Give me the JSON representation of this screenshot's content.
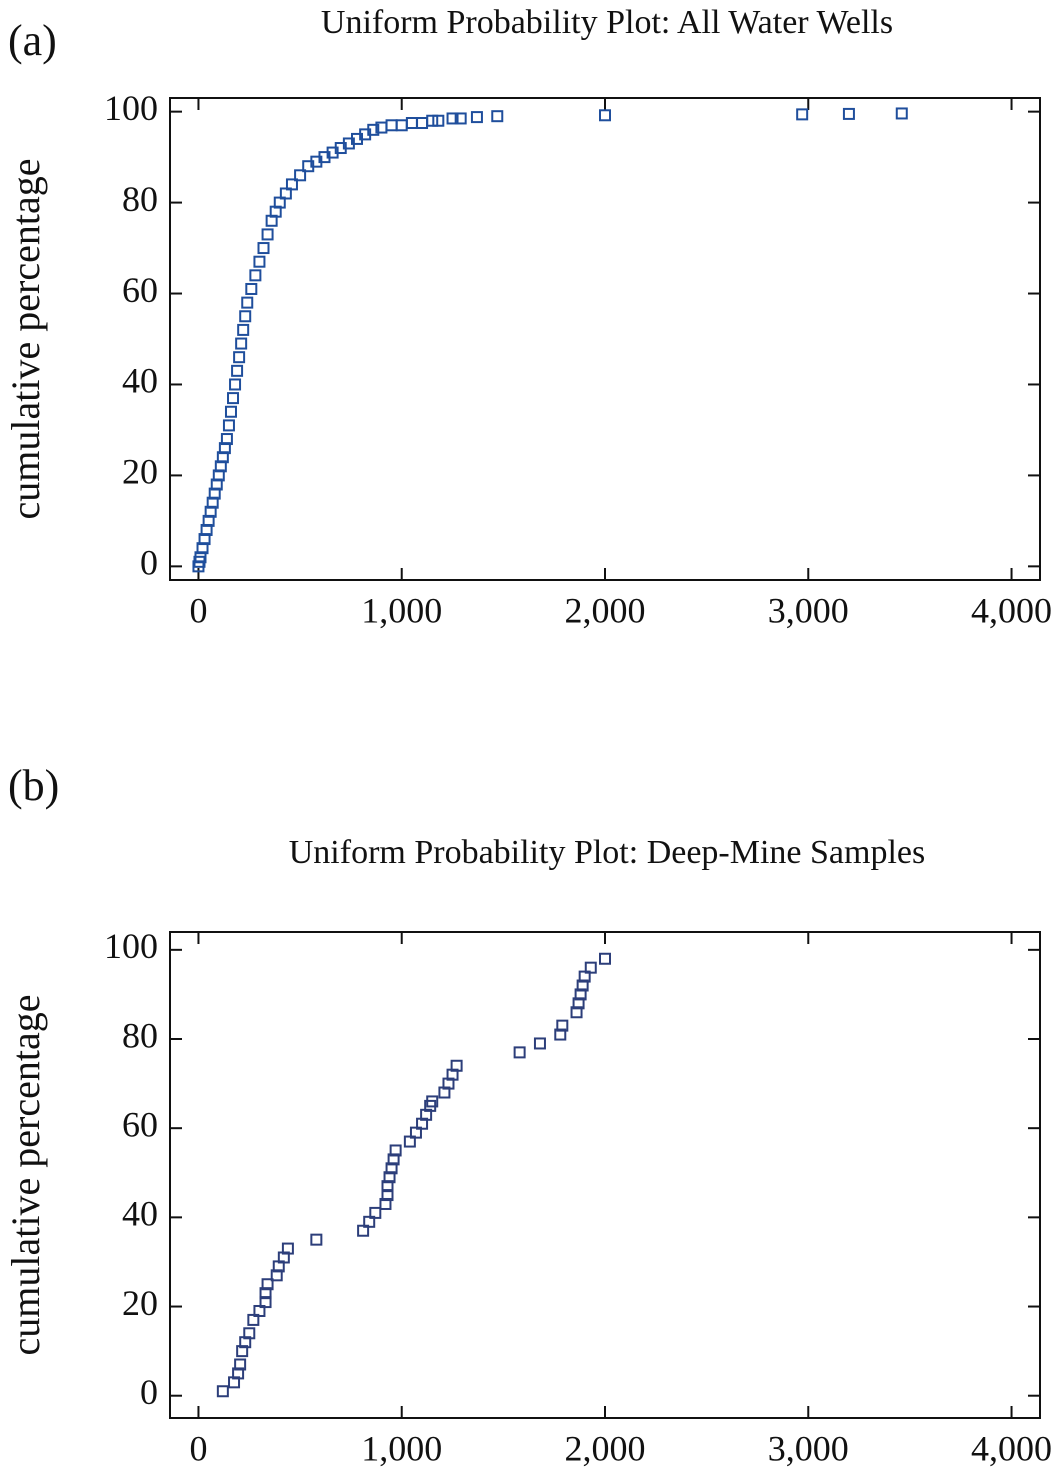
{
  "chart_data": [
    {
      "type": "scatter",
      "panel_label": "(a)",
      "title": "Uniform Probability Plot: All Water Wells",
      "ylabel": "cumulative percentage",
      "color": "#1f4e9c",
      "x": [
        0,
        5,
        10,
        20,
        30,
        40,
        50,
        60,
        70,
        80,
        90,
        100,
        110,
        120,
        130,
        140,
        150,
        160,
        170,
        180,
        190,
        200,
        210,
        220,
        230,
        240,
        260,
        280,
        300,
        320,
        340,
        360,
        380,
        400,
        430,
        460,
        500,
        540,
        580,
        620,
        660,
        700,
        740,
        780,
        820,
        860,
        900,
        950,
        1000,
        1050,
        1100,
        1150,
        1180,
        1250,
        1290,
        1370,
        1470,
        2000,
        2970,
        3200,
        3460
      ],
      "values": [
        0,
        1,
        2,
        4,
        6,
        8,
        10,
        12,
        14,
        16,
        18,
        20,
        22,
        24,
        26,
        28,
        31,
        34,
        37,
        40,
        43,
        46,
        49,
        52,
        55,
        58,
        61,
        64,
        67,
        70,
        73,
        76,
        78,
        80,
        82,
        84,
        86,
        88,
        89,
        90,
        91,
        92,
        93,
        94,
        95,
        96,
        96.5,
        97,
        97,
        97.5,
        97.5,
        98,
        98,
        98.5,
        98.5,
        98.8,
        99,
        99.2,
        99.4,
        99.5,
        99.6
      ],
      "xlim": [
        -140,
        4140
      ],
      "ylim": [
        -3,
        103
      ],
      "xticks": [
        0,
        {
          "value": 1000,
          "label": "1,000"
        },
        {
          "value": 2000,
          "label": "2,000"
        },
        {
          "value": 3000,
          "label": "3,000"
        },
        {
          "value": 4000,
          "label": "4,000"
        }
      ],
      "yticks": [
        0,
        20,
        40,
        60,
        80,
        100
      ]
    },
    {
      "type": "scatter",
      "panel_label": "(b)",
      "title": "Uniform Probability Plot: Deep-Mine Samples",
      "ylabel": "cumulative percentage",
      "color": "#2c3e7a",
      "x": [
        120,
        175,
        195,
        205,
        215,
        230,
        250,
        270,
        300,
        330,
        330,
        340,
        385,
        395,
        420,
        440,
        580,
        810,
        840,
        870,
        920,
        930,
        930,
        940,
        950,
        960,
        970,
        1040,
        1070,
        1100,
        1120,
        1140,
        1150,
        1210,
        1230,
        1250,
        1270,
        1580,
        1680,
        1780,
        1790,
        1860,
        1870,
        1880,
        1890,
        1900,
        1930,
        2000
      ],
      "values": [
        1,
        3,
        5,
        7,
        10,
        12,
        14,
        17,
        19,
        21,
        23,
        25,
        27,
        29,
        31,
        33,
        35,
        37,
        39,
        41,
        43,
        45,
        47,
        49,
        51,
        53,
        55,
        57,
        59,
        61,
        63,
        65,
        66,
        68,
        70,
        72,
        74,
        77,
        79,
        81,
        83,
        86,
        88,
        90,
        92,
        94,
        96,
        98
      ],
      "xlim": [
        -140,
        4140
      ],
      "ylim": [
        -5,
        104
      ],
      "xticks": [
        0,
        {
          "value": 1000,
          "label": "1,000"
        },
        {
          "value": 2000,
          "label": "2,000"
        },
        {
          "value": 3000,
          "label": "3,000"
        },
        {
          "value": 4000,
          "label": "4,000"
        }
      ],
      "yticks": [
        0,
        20,
        40,
        60,
        80,
        100
      ]
    }
  ]
}
